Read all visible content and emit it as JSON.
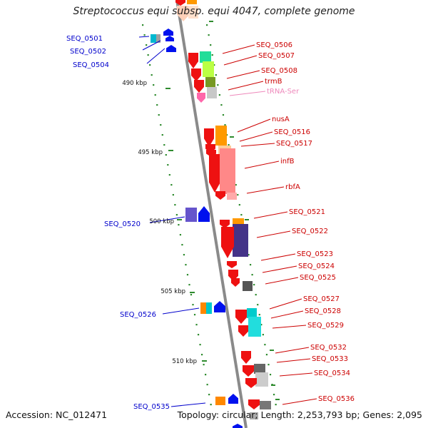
{
  "title": "Streptococcus equi subsp. equi 4047, complete genome",
  "footer": {
    "accession": "Accession: NC_012471",
    "topology": "Topology: circular; Length: 2,253,793 bp; Genes: 2,095"
  },
  "colors": {
    "backbone": "#8a8a8a",
    "ruler_dots": "#2e8b2e",
    "cds": "#ee1111",
    "left_labels": "#0000cc",
    "right_labels": "#cc0000",
    "rna_label": "#ee88bb"
  },
  "scale_labels": [
    {
      "text": "490 kbp",
      "kbp": 490
    },
    {
      "text": "495 kbp",
      "kbp": 495
    },
    {
      "text": "500 kbp",
      "kbp": 500
    },
    {
      "text": "505 kbp",
      "kbp": 505
    },
    {
      "text": "510 kbp",
      "kbp": 510
    }
  ],
  "left_genes": [
    {
      "label": "SEQ_0501"
    },
    {
      "label": "SEQ_0502"
    },
    {
      "label": "SEQ_0504"
    },
    {
      "label": "SEQ_0520"
    },
    {
      "label": "SEQ_0526"
    },
    {
      "label": "SEQ_0535"
    }
  ],
  "right_genes": [
    {
      "label": "SEQ_0506"
    },
    {
      "label": "SEQ_0507"
    },
    {
      "label": "SEQ_0508"
    },
    {
      "label": "trmB"
    },
    {
      "label": "tRNA-Ser",
      "type": "rna"
    },
    {
      "label": "nusA"
    },
    {
      "label": "SEQ_0516"
    },
    {
      "label": "SEQ_0517"
    },
    {
      "label": "infB"
    },
    {
      "label": "rbfA"
    },
    {
      "label": "SEQ_0521"
    },
    {
      "label": "SEQ_0522"
    },
    {
      "label": "SEQ_0523"
    },
    {
      "label": "SEQ_0524"
    },
    {
      "label": "SEQ_0525"
    },
    {
      "label": "SEQ_0527"
    },
    {
      "label": "SEQ_0528"
    },
    {
      "label": "SEQ_0529"
    },
    {
      "label": "SEQ_0532"
    },
    {
      "label": "SEQ_0533"
    },
    {
      "label": "SEQ_0534"
    },
    {
      "label": "SEQ_0536"
    }
  ]
}
